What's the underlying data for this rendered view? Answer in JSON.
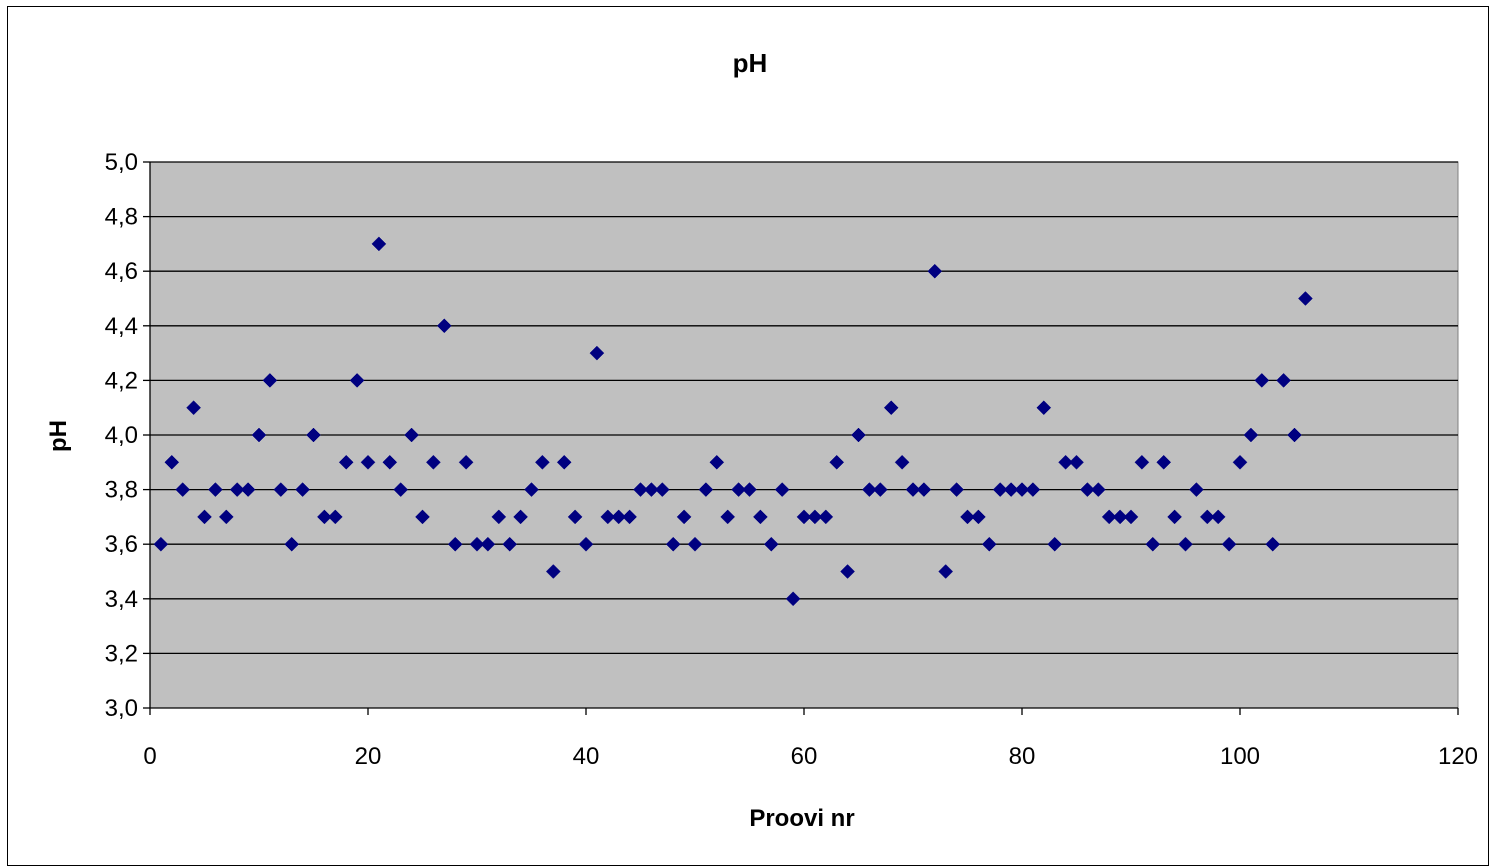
{
  "chart_data": {
    "type": "scatter",
    "title": "pH",
    "xlabel": "Proovi nr",
    "ylabel": "pH",
    "xlim": [
      0,
      120
    ],
    "ylim": [
      3.0,
      5.0
    ],
    "xticks": [
      0,
      20,
      40,
      60,
      80,
      100,
      120
    ],
    "xtick_labels": [
      "0",
      "20",
      "40",
      "60",
      "80",
      "100",
      "120"
    ],
    "yticks": [
      3.0,
      3.2,
      3.4,
      3.6,
      3.8,
      4.0,
      4.2,
      4.4,
      4.6,
      4.8,
      5.0
    ],
    "ytick_labels": [
      "3,0",
      "3,2",
      "3,4",
      "3,6",
      "3,8",
      "4,0",
      "4,2",
      "4,4",
      "4,6",
      "4,8",
      "5,0"
    ],
    "grid": "horizontal",
    "legend": "none",
    "plot_background": "#c0c0c0",
    "marker": "diamond",
    "marker_color": "#000080",
    "series": [
      {
        "x": [
          1,
          2,
          3,
          4,
          5,
          6,
          7,
          8,
          9,
          10,
          11,
          12,
          13,
          14,
          15,
          16,
          17,
          18,
          19,
          20,
          21,
          22,
          23,
          24,
          25,
          26,
          27,
          28,
          29,
          30,
          31,
          32,
          33,
          34,
          35,
          36,
          37,
          38,
          39,
          40,
          41,
          42,
          43,
          44,
          45,
          46,
          47,
          48,
          49,
          50,
          51,
          52,
          53,
          54,
          55,
          56,
          57,
          58,
          59,
          60,
          61,
          62,
          63,
          64,
          65,
          66,
          67,
          68,
          69,
          70,
          71,
          72,
          73,
          74,
          75,
          76,
          77,
          78,
          79,
          80,
          81,
          82,
          83,
          84,
          85,
          86,
          87,
          88,
          89,
          90,
          91,
          92,
          93,
          94,
          95,
          96,
          97,
          98,
          99,
          100,
          101,
          102,
          103,
          104,
          105,
          106
        ],
        "y": [
          3.6,
          3.9,
          3.8,
          4.1,
          3.7,
          3.8,
          3.7,
          3.8,
          3.8,
          4.0,
          4.2,
          3.8,
          3.6,
          3.8,
          4.0,
          3.7,
          3.7,
          3.9,
          4.2,
          3.9,
          4.7,
          3.9,
          3.8,
          4.0,
          3.7,
          3.9,
          4.4,
          3.6,
          3.9,
          3.6,
          3.6,
          3.7,
          3.6,
          3.7,
          3.8,
          3.9,
          3.5,
          3.9,
          3.7,
          3.6,
          4.3,
          3.7,
          3.7,
          3.7,
          3.8,
          3.8,
          3.8,
          3.6,
          3.7,
          3.6,
          3.8,
          3.9,
          3.7,
          3.8,
          3.8,
          3.7,
          3.6,
          3.8,
          3.4,
          3.7,
          3.7,
          3.7,
          3.9,
          3.5,
          4.0,
          3.8,
          3.8,
          4.1,
          3.9,
          3.8,
          3.8,
          4.6,
          3.5,
          3.8,
          3.7,
          3.7,
          3.6,
          3.8,
          3.8,
          3.8,
          3.8,
          4.1,
          3.6,
          3.9,
          3.9,
          3.8,
          3.8,
          3.7,
          3.7,
          3.7,
          3.9,
          3.6,
          3.9,
          3.7,
          3.6,
          3.8,
          3.7,
          3.7,
          3.6,
          3.9,
          4.0,
          4.2,
          3.6,
          4.2,
          4.0,
          4.5
        ]
      }
    ]
  }
}
